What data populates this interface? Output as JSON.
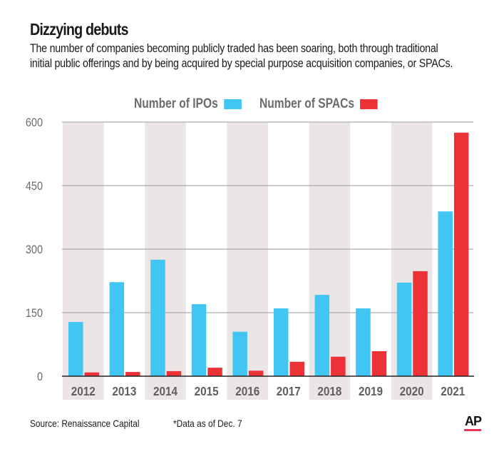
{
  "header": {
    "title": "Dizzying debuts",
    "subtitle_line1": "The number of companies becoming publicly traded has been soaring, both through traditional",
    "subtitle_line2": "initial public offerings and by being acquired by special purpose acquisition companies, or SPACs."
  },
  "footer": {
    "source": "Source: Renaissance Capital",
    "note": "*Data as of Dec. 7",
    "logo": "AP"
  },
  "colors": {
    "ipo": "#41c5f2",
    "spac": "#ec3237",
    "band": "#ebe6e5",
    "ap_underline": "#e9375a"
  },
  "chart_data": {
    "type": "bar",
    "title": "Dizzying debuts",
    "xlabel": "",
    "ylabel": "",
    "categories": [
      "2012",
      "2013",
      "2014",
      "2015",
      "2016",
      "2017",
      "2018",
      "2019",
      "2020",
      "2021"
    ],
    "series": [
      {
        "name": "Number of IPOs",
        "color": "#41c5f2",
        "values": [
          128,
          222,
          275,
          170,
          105,
          160,
          192,
          160,
          221,
          389
        ]
      },
      {
        "name": "Number of SPACs",
        "color": "#ec3237",
        "values": [
          9,
          10,
          12,
          20,
          13,
          34,
          46,
          59,
          248,
          575
        ]
      }
    ],
    "ylim": [
      0,
      600
    ],
    "yticks": [
      0,
      150,
      300,
      450,
      600
    ],
    "ytick_labels": [
      "0",
      "150",
      "300",
      "450",
      "600"
    ],
    "grid": true,
    "legend": "top-center",
    "alternating_bands": true,
    "annotations": [
      "*Data as of Dec. 7"
    ]
  }
}
